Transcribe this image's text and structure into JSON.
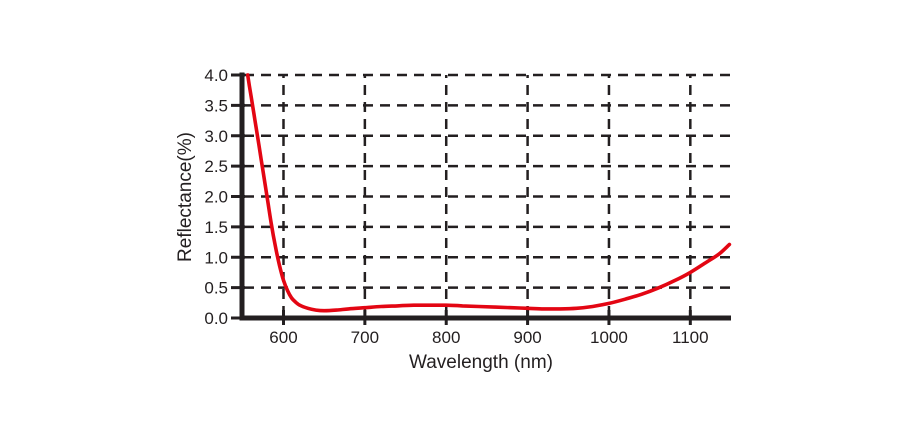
{
  "chart_data": {
    "type": "line",
    "xlabel": "Wavelength (nm)",
    "ylabel": "Reflectance(%)",
    "xlim": [
      549,
      1150
    ],
    "ylim": [
      0,
      4
    ],
    "x_ticks": [
      600,
      700,
      800,
      900,
      1000,
      1100
    ],
    "x_tick_labels": [
      "600",
      "700",
      "800",
      "900",
      "1000",
      "1100"
    ],
    "y_ticks": [
      0,
      0.5,
      1,
      1.5,
      2,
      2.5,
      3,
      3.5,
      4
    ],
    "y_tick_labels": [
      "0.0",
      "0.5",
      "1.0",
      "1.5",
      "2.0",
      "2.5",
      "3.0",
      "3.5",
      "4.0"
    ],
    "grid": {
      "style": "dashed",
      "on": true,
      "color": "#231f20"
    },
    "legend": "none",
    "axis_color": "#231f20",
    "series": [
      {
        "name": "reflectance",
        "color": "#e30613",
        "points": [
          [
            556,
            4.0
          ],
          [
            560,
            3.66
          ],
          [
            565,
            3.25
          ],
          [
            570,
            2.83
          ],
          [
            575,
            2.4
          ],
          [
            580,
            1.98
          ],
          [
            585,
            1.55
          ],
          [
            590,
            1.18
          ],
          [
            595,
            0.87
          ],
          [
            600,
            0.62
          ],
          [
            605,
            0.45
          ],
          [
            610,
            0.33
          ],
          [
            615,
            0.26
          ],
          [
            620,
            0.21
          ],
          [
            630,
            0.16
          ],
          [
            640,
            0.13
          ],
          [
            650,
            0.12
          ],
          [
            665,
            0.13
          ],
          [
            680,
            0.15
          ],
          [
            700,
            0.17
          ],
          [
            720,
            0.19
          ],
          [
            740,
            0.2
          ],
          [
            760,
            0.21
          ],
          [
            780,
            0.21
          ],
          [
            800,
            0.21
          ],
          [
            820,
            0.2
          ],
          [
            840,
            0.19
          ],
          [
            860,
            0.18
          ],
          [
            880,
            0.17
          ],
          [
            900,
            0.16
          ],
          [
            920,
            0.15
          ],
          [
            940,
            0.15
          ],
          [
            960,
            0.16
          ],
          [
            980,
            0.19
          ],
          [
            1000,
            0.24
          ],
          [
            1020,
            0.31
          ],
          [
            1040,
            0.39
          ],
          [
            1060,
            0.49
          ],
          [
            1080,
            0.61
          ],
          [
            1100,
            0.75
          ],
          [
            1120,
            0.92
          ],
          [
            1135,
            1.05
          ],
          [
            1148,
            1.21
          ]
        ]
      }
    ]
  }
}
